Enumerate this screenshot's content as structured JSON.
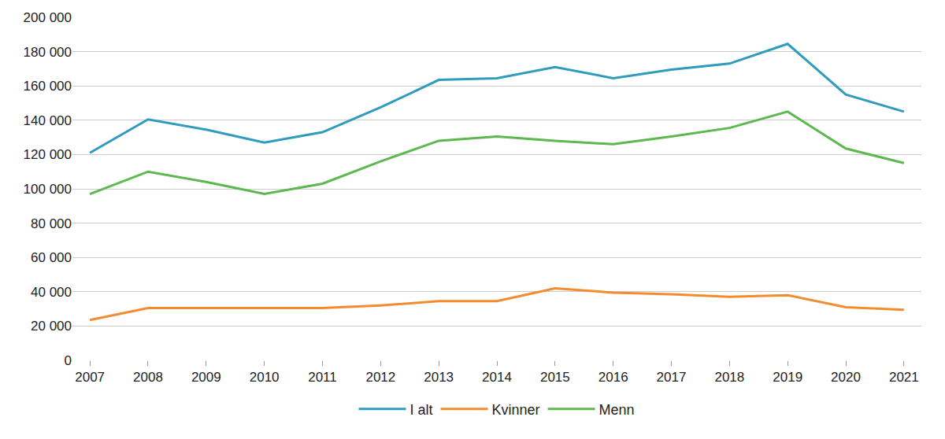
{
  "chart_data": {
    "type": "line",
    "categories": [
      "2007",
      "2008",
      "2009",
      "2010",
      "2011",
      "2012",
      "2013",
      "2014",
      "2015",
      "2016",
      "2017",
      "2018",
      "2019",
      "2020",
      "2021"
    ],
    "series": [
      {
        "name": "I alt",
        "color": "#2f9bbd",
        "values": [
          121000,
          140500,
          134500,
          127000,
          133000,
          147500,
          163500,
          164500,
          171000,
          164500,
          169500,
          173000,
          184500,
          155000,
          145000
        ]
      },
      {
        "name": "Kvinner",
        "color": "#f28c2f",
        "values": [
          23500,
          30500,
          30500,
          30500,
          30500,
          32000,
          34500,
          34500,
          42000,
          39500,
          38500,
          37000,
          38000,
          31000,
          29500
        ]
      },
      {
        "name": "Menn",
        "color": "#5cb84f",
        "values": [
          97000,
          110000,
          104000,
          97000,
          103000,
          116000,
          128000,
          130500,
          128000,
          126000,
          130500,
          135500,
          145000,
          123500,
          115000
        ]
      }
    ],
    "ylim": [
      0,
      200000
    ],
    "yticks": [
      0,
      {
        "value": 20000,
        "label": "20 000"
      },
      {
        "value": 40000,
        "label": "40 000"
      },
      {
        "value": 60000,
        "label": "60 000"
      },
      {
        "value": 80000,
        "label": "80 000"
      },
      {
        "value": 100000,
        "label": "100 000"
      },
      {
        "value": 120000,
        "label": "120 000"
      },
      {
        "value": 140000,
        "label": "140 000"
      },
      {
        "value": 160000,
        "label": "160 000"
      },
      {
        "value": 180000,
        "label": "180 000"
      },
      {
        "value": 200000,
        "label": "200 000"
      }
    ],
    "grid": true,
    "legend": "bottom"
  }
}
